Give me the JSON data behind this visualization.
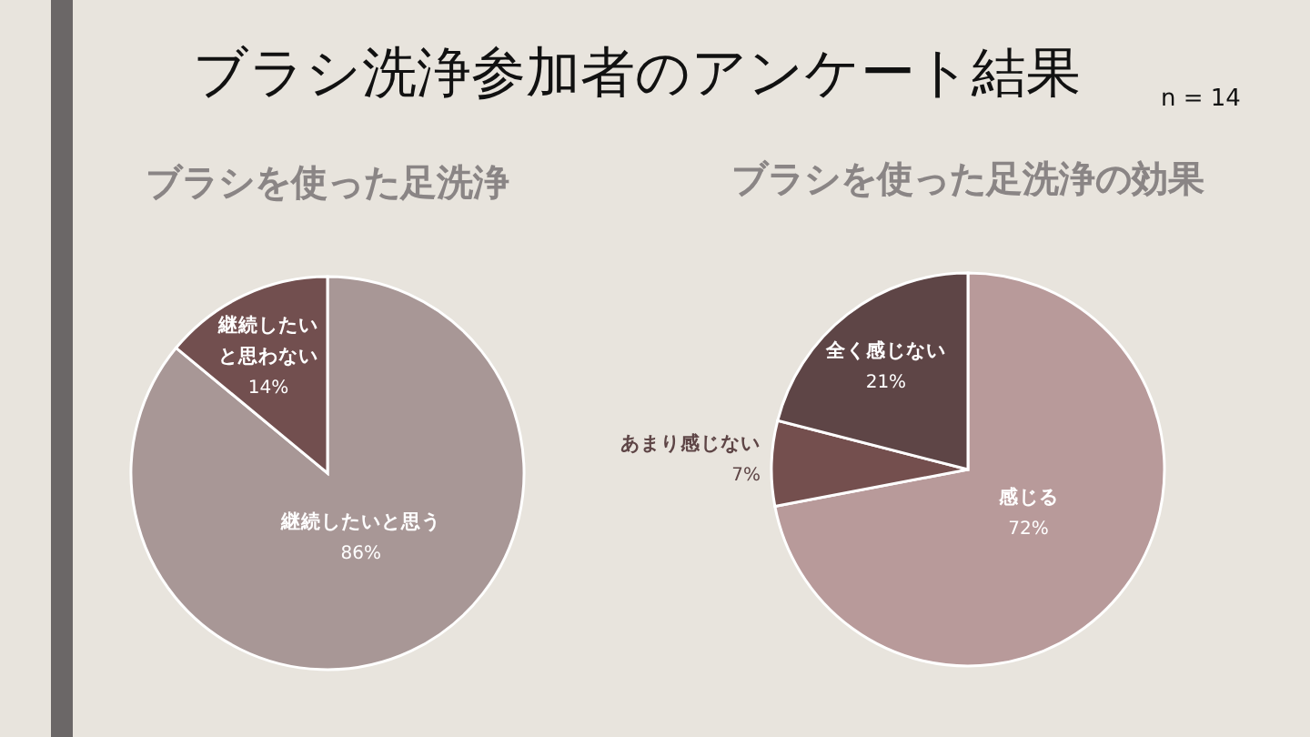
{
  "chart_data": [
    {
      "type": "pie",
      "title": "ブラシを使った足洗浄",
      "annotations": [
        "ブラシ洗浄参加者のアンケート結果",
        "n = 14"
      ],
      "categories": [
        "継続したいと思う",
        "継続したいと思わない"
      ],
      "values": [
        86,
        14
      ],
      "value_labels": [
        "86%",
        "14%"
      ],
      "colors": [
        "#a89796",
        "#724f4f"
      ],
      "legend": false
    },
    {
      "type": "pie",
      "title": "ブラシを使った足洗浄の効果",
      "categories": [
        "感じる",
        "あまり感じない",
        "全く感じない"
      ],
      "values": [
        72,
        7,
        21
      ],
      "value_labels": [
        "72%",
        "7%",
        "21%"
      ],
      "colors": [
        "#b89a9a",
        "#744f4e",
        "#5e4546"
      ],
      "legend": false
    }
  ]
}
